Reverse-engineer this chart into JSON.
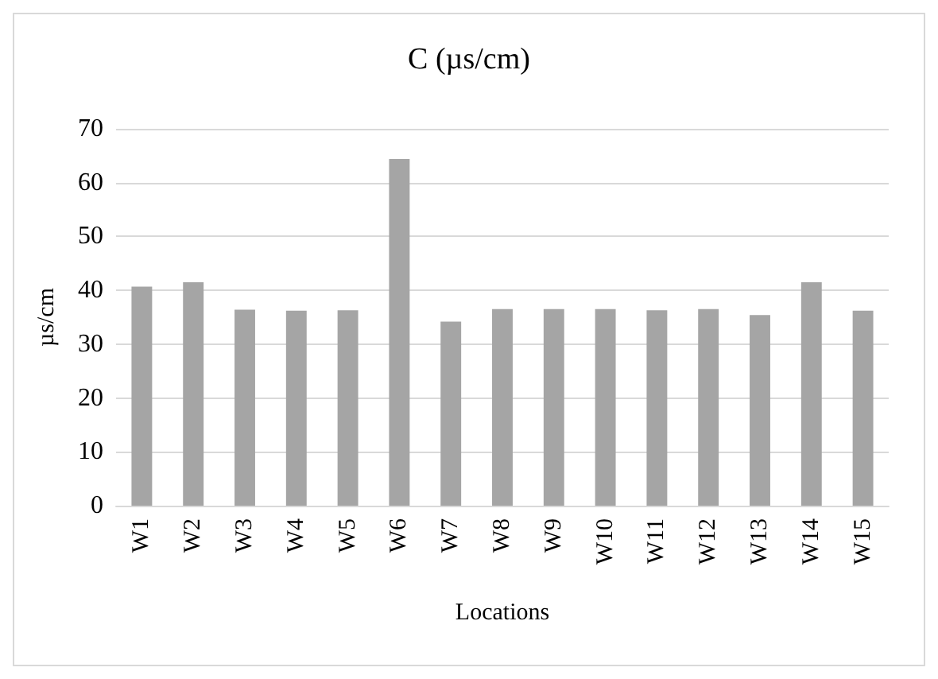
{
  "chart_data": {
    "type": "bar",
    "title": "C (µs/cm)",
    "xlabel": "Locations",
    "ylabel": "µs/cm",
    "categories": [
      "W1",
      "W2",
      "W3",
      "W4",
      "W5",
      "W6",
      "W7",
      "W8",
      "W9",
      "W10",
      "W11",
      "W12",
      "W13",
      "W14",
      "W15"
    ],
    "values": [
      40.7,
      41.5,
      36.4,
      36.2,
      36.3,
      64.4,
      34.2,
      36.5,
      36.5,
      36.5,
      36.3,
      36.5,
      35.4,
      41.5,
      36.2
    ],
    "color": "#a5a5a5",
    "ylim": [
      0,
      70
    ],
    "yticks": [
      0,
      10,
      20,
      30,
      40,
      50,
      60,
      70
    ],
    "grid": "y"
  }
}
